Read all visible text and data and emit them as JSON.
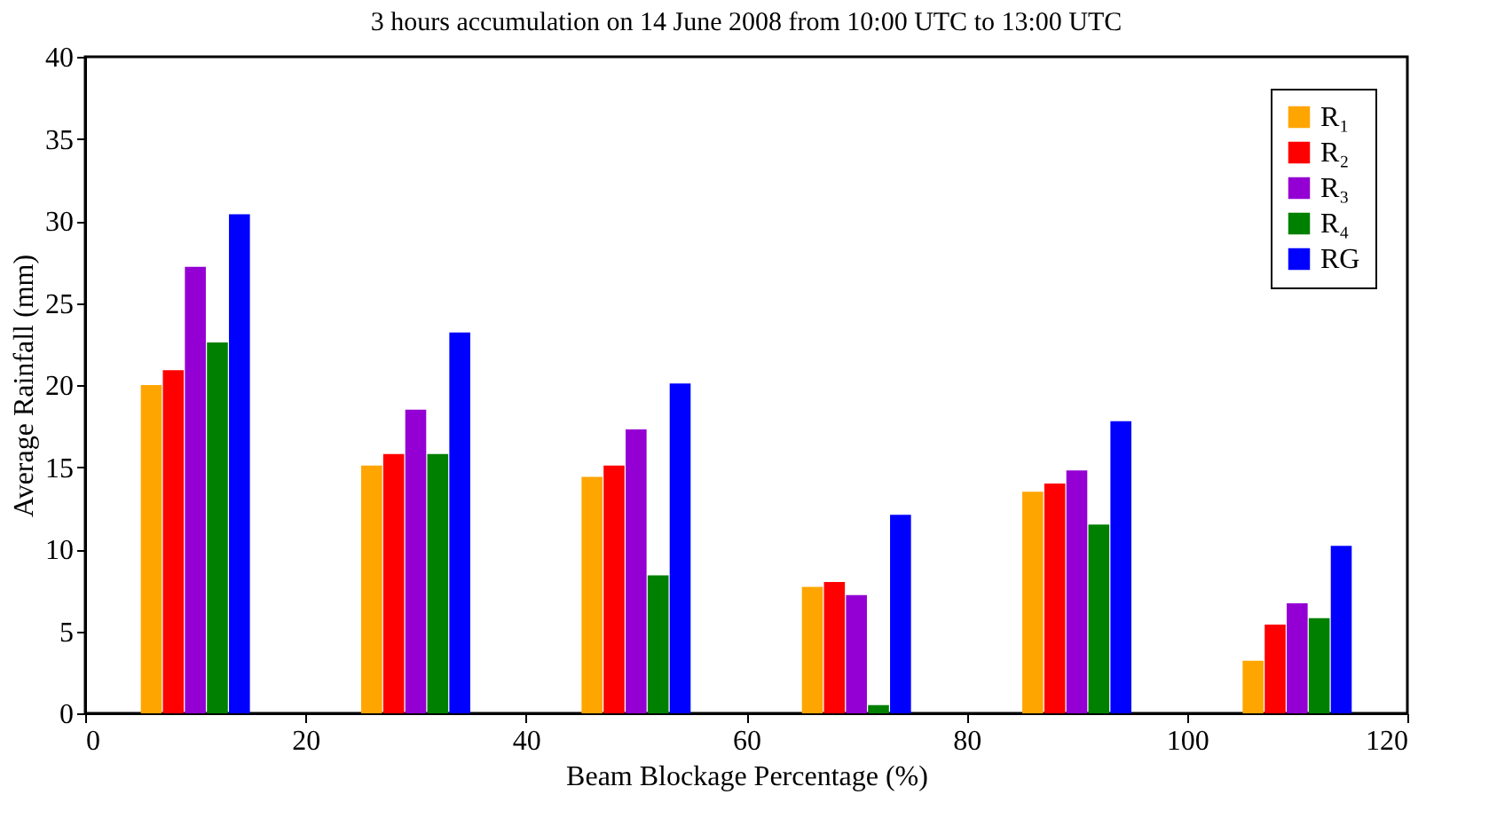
{
  "chart_data": {
    "type": "bar",
    "title": "3 hours accumulation on 14 June 2008 from 10:00 UTC to 13:00 UTC",
    "xlabel": "Beam Blockage Percentage (%)",
    "ylabel": "Average Rainfall (mm)",
    "xlim": [
      0,
      120
    ],
    "xticks": [
      0,
      20,
      40,
      60,
      80,
      100,
      120
    ],
    "ylim": [
      0,
      40
    ],
    "yticks": [
      0,
      5,
      10,
      15,
      20,
      25,
      30,
      35,
      40
    ],
    "grid": false,
    "legend": "top right",
    "series": [
      {
        "name": "R₁",
        "color": "#ffa500",
        "x": [
          6,
          26,
          46,
          66,
          86,
          106
        ],
        "values": [
          20.0,
          15.1,
          14.4,
          7.7,
          13.5,
          3.2
        ]
      },
      {
        "name": "R₂",
        "color": "#ff0000",
        "x": [
          8,
          28,
          48,
          68,
          88,
          108
        ],
        "values": [
          20.9,
          15.8,
          15.1,
          8.0,
          14.0,
          5.4
        ]
      },
      {
        "name": "R₃",
        "color": "#9400d3",
        "x": [
          10,
          30,
          50,
          70,
          90,
          110
        ],
        "values": [
          27.2,
          18.5,
          17.3,
          7.2,
          14.8,
          6.7
        ]
      },
      {
        "name": "R₄",
        "color": "#008000",
        "x": [
          12,
          32,
          52,
          72,
          92,
          112
        ],
        "values": [
          22.6,
          15.8,
          8.4,
          0.5,
          11.5,
          5.8
        ]
      },
      {
        "name": "RG",
        "color": "#0000ff",
        "x": [
          14,
          34,
          54,
          74,
          94,
          114
        ],
        "values": [
          30.4,
          23.2,
          20.1,
          12.1,
          17.8,
          10.2
        ]
      }
    ]
  }
}
